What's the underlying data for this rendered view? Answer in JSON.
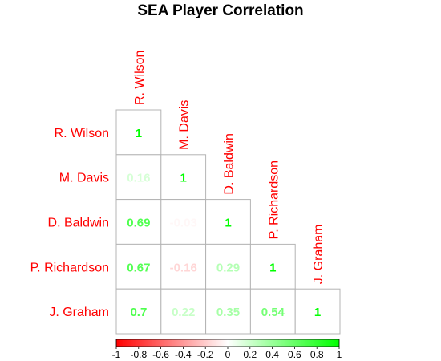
{
  "chart_data": {
    "type": "heatmap",
    "title": "SEA Player Correlation",
    "variables": [
      "R. Wilson",
      "M. Davis",
      "D. Baldwin",
      "P. Richardson",
      "J. Graham"
    ],
    "matrix": [
      [
        "1"
      ],
      [
        "0.16",
        "1"
      ],
      [
        "0.69",
        "-0.03",
        "1"
      ],
      [
        "0.67",
        "-0.16",
        "0.29",
        "1"
      ],
      [
        "0.7",
        "0.22",
        "0.35",
        "0.54",
        "1"
      ]
    ],
    "triangle": "lower",
    "color_scale": {
      "min": -1,
      "max": 1,
      "ticks": [
        "-1",
        "-0.8",
        "-0.6",
        "-0.4",
        "-0.2",
        "0",
        "0.2",
        "0.4",
        "0.6",
        "0.8",
        "1"
      ],
      "colors": {
        "negative": "#ff0000",
        "zero": "#ffffff",
        "positive": "#00ff00"
      }
    },
    "label_color": "#ff0000"
  }
}
